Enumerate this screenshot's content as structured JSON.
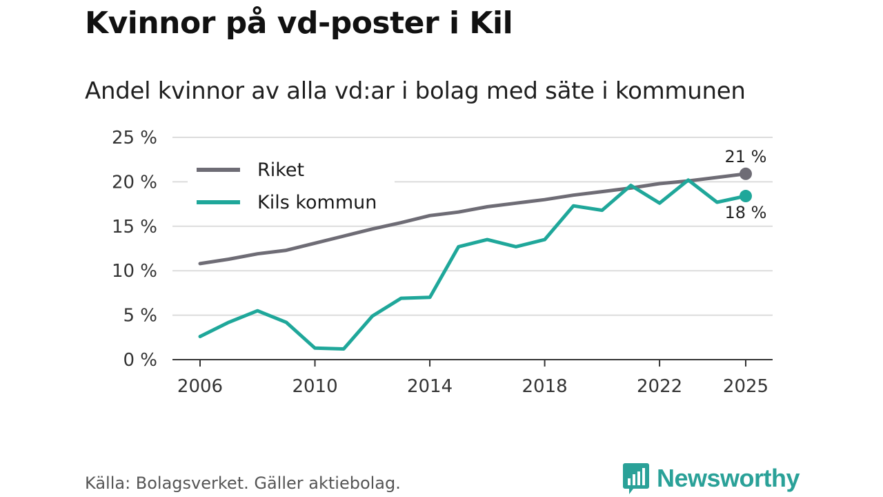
{
  "header": {
    "title": "Kvinnor på vd-poster i Kil",
    "subtitle": "Andel kvinnor av alla vd:ar i bolag med säte i kommunen"
  },
  "footer": {
    "source": "Källa: Bolagsverket. Gäller aktiebolag.",
    "brand": "Newsworthy"
  },
  "colors": {
    "riket": "#6e6c75",
    "kil": "#1fa79a",
    "grid": "#dcdcdc",
    "axis": "#333333",
    "brand": "#2aa198"
  },
  "chart_data": {
    "type": "line",
    "title": "Kvinnor på vd-poster i Kil",
    "subtitle": "Andel kvinnor av alla vd:ar i bolag med säte i kommunen",
    "xlabel": "",
    "ylabel": "",
    "x": [
      2006,
      2007,
      2008,
      2009,
      2010,
      2011,
      2012,
      2013,
      2014,
      2015,
      2016,
      2017,
      2018,
      2019,
      2020,
      2021,
      2022,
      2023,
      2024,
      2025
    ],
    "xticks": [
      "2006",
      "2010",
      "2014",
      "2018",
      "2022",
      "2025"
    ],
    "ylim": [
      0,
      25
    ],
    "yticks": [
      "0 %",
      "5 %",
      "10 %",
      "15 %",
      "20 %",
      "25 %"
    ],
    "grid": true,
    "legend": "top-left",
    "series": [
      {
        "name": "Riket",
        "values": [
          10.8,
          11.3,
          11.9,
          12.3,
          13.1,
          13.9,
          14.7,
          15.4,
          16.2,
          16.6,
          17.2,
          17.6,
          18.0,
          18.5,
          18.9,
          19.3,
          19.8,
          20.1,
          20.5,
          20.9
        ],
        "end_label": "21 %"
      },
      {
        "name": "Kils kommun",
        "values": [
          2.6,
          4.2,
          5.5,
          4.2,
          1.3,
          1.2,
          4.9,
          6.9,
          7.0,
          12.7,
          13.5,
          12.7,
          13.5,
          17.3,
          16.8,
          19.6,
          17.6,
          20.2,
          17.7,
          18.4
        ],
        "end_label": "18 %"
      }
    ]
  }
}
